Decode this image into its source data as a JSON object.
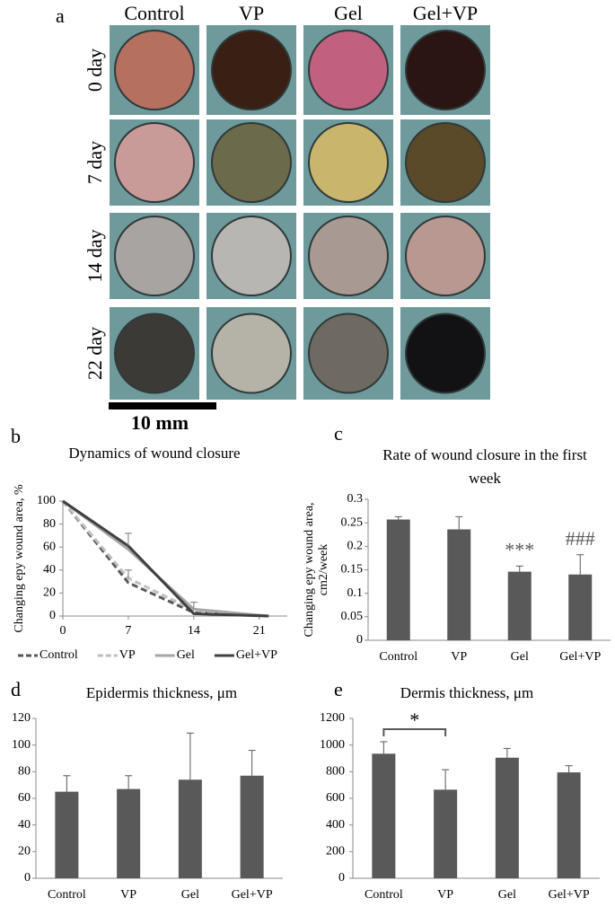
{
  "figure_a": {
    "label": "a",
    "columns": [
      "Control",
      "VP",
      "Gel",
      "Gel+VP"
    ],
    "rows": [
      "0 day",
      "7 day",
      "14 day",
      "22 day"
    ],
    "scale_bar": "10 mm"
  },
  "chart_data": [
    {
      "type": "line",
      "panel": "b",
      "title": [
        "Dynamics of wound closure"
      ],
      "ylabel": [
        "Changing epy wound area, %"
      ],
      "x": [
        0,
        7,
        14,
        22
      ],
      "xlim": [
        0,
        24
      ],
      "xticks": [
        0,
        7,
        14,
        21
      ],
      "ylim": [
        0,
        100
      ],
      "yticks": [
        0,
        20,
        40,
        60,
        80,
        100
      ],
      "series": [
        {
          "name": "Control",
          "color": "#595959",
          "dash": true,
          "values": [
            100,
            29,
            3,
            0
          ],
          "errors": [
            null,
            null,
            null,
            null
          ]
        },
        {
          "name": "VP",
          "color": "#bfbfbf",
          "dash": true,
          "values": [
            100,
            33,
            5,
            0
          ],
          "errors": [
            null,
            7,
            null,
            null
          ]
        },
        {
          "name": "Gel",
          "color": "#a6a6a6",
          "dash": false,
          "values": [
            100,
            58,
            6,
            0
          ],
          "errors": [
            null,
            null,
            6,
            null
          ]
        },
        {
          "name": "Gel+VP",
          "color": "#404040",
          "dash": false,
          "values": [
            100,
            61,
            2,
            0
          ],
          "errors": [
            null,
            11,
            null,
            null
          ]
        }
      ]
    },
    {
      "type": "bar",
      "panel": "c",
      "title": [
        "Rate of wound closure in the first",
        "week"
      ],
      "ylabel": [
        "Changing epy wound area,",
        "cm2/week"
      ],
      "categories": [
        "Control",
        "VP",
        "Gel",
        "Gel+VP"
      ],
      "values": [
        0.257,
        0.236,
        0.146,
        0.14
      ],
      "errors": [
        0.006,
        0.027,
        0.012,
        0.042
      ],
      "annotations": [
        null,
        null,
        "***",
        "###"
      ],
      "color": "#595959",
      "ylim": [
        0,
        0.3
      ],
      "yticks": [
        0,
        0.05,
        0.1,
        0.15,
        0.2,
        0.25,
        0.3
      ]
    },
    {
      "type": "bar",
      "panel": "d",
      "title": [
        "Epidermis thickness, μm"
      ],
      "categories": [
        "Control",
        "VP",
        "Gel",
        "Gel+VP"
      ],
      "values": [
        65,
        67,
        74,
        77
      ],
      "errors": [
        12,
        10,
        35,
        19
      ],
      "color": "#595959",
      "ylim": [
        0,
        120
      ],
      "yticks": [
        0,
        20,
        40,
        60,
        80,
        100,
        120
      ]
    },
    {
      "type": "bar",
      "panel": "e",
      "title": [
        "Dermis thickness, μm"
      ],
      "categories": [
        "Control",
        "VP",
        "Gel",
        "Gel+VP"
      ],
      "values": [
        935,
        665,
        905,
        795
      ],
      "errors": [
        90,
        150,
        70,
        50
      ],
      "color": "#595959",
      "brackets": [
        {
          "from": "Control",
          "to": "VP",
          "label": "*"
        }
      ],
      "ylim": [
        0,
        1200
      ],
      "yticks": [
        0,
        200,
        400,
        600,
        800,
        1000,
        1200
      ]
    }
  ]
}
